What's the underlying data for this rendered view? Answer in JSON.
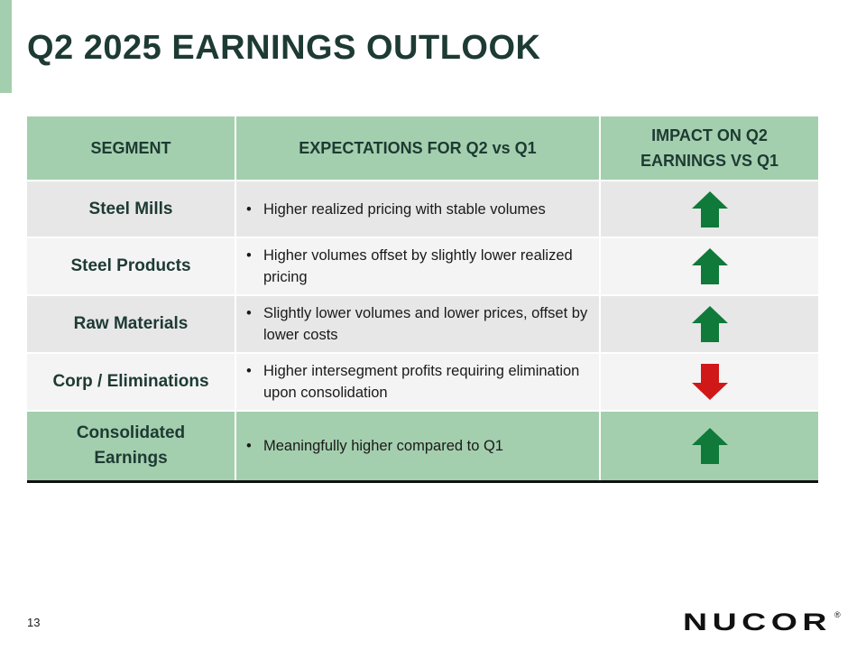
{
  "slide": {
    "title": "Q2 2025 EARNINGS OUTLOOK",
    "page_number": "13"
  },
  "table": {
    "headers": {
      "segment": "SEGMENT",
      "expectations": "EXPECTATIONS FOR Q2 vs Q1",
      "impact_line1": "IMPACT ON Q2",
      "impact_line2": "EARNINGS VS Q1"
    },
    "rows": [
      {
        "segment": "Steel Mills",
        "expectation": "Higher realized pricing with stable volumes",
        "impact": "up"
      },
      {
        "segment": "Steel Products",
        "expectation": "Higher volumes offset by slightly lower realized pricing",
        "impact": "up"
      },
      {
        "segment": "Raw Materials",
        "expectation": "Slightly lower volumes and lower prices, offset by lower costs",
        "impact": "up"
      },
      {
        "segment": "Corp / Eliminations",
        "expectation": "Higher intersegment profits requiring elimination upon consolidation",
        "impact": "down"
      }
    ],
    "total": {
      "segment_line1": "Consolidated",
      "segment_line2": "Earnings",
      "expectation": "Meaningfully higher compared to Q1",
      "impact": "up"
    }
  },
  "icons": {
    "up": "arrow-up-icon",
    "down": "arrow-down-icon"
  },
  "colors": {
    "header_green": "#a4cfae",
    "title_dark": "#1d3a33",
    "arrow_up": "#0f7a3a",
    "arrow_down": "#d01818"
  },
  "logo": {
    "text": "NUCOR",
    "mark": "®"
  }
}
